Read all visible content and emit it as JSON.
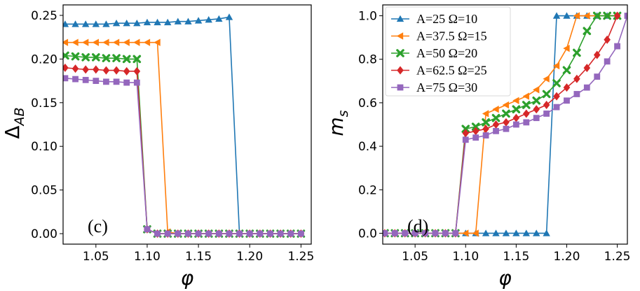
{
  "chart_data": [
    {
      "type": "line",
      "panel_label": "(c)",
      "xlabel": "φ",
      "ylabel_main": "Δ",
      "ylabel_sub": "AB",
      "xlim": [
        1.018,
        1.26
      ],
      "ylim": [
        -0.012,
        0.262
      ],
      "xticks": [
        1.05,
        1.1,
        1.15,
        1.2,
        1.25
      ],
      "xtick_labels": [
        "1.05",
        "1.10",
        "1.15",
        "1.20",
        "1.25"
      ],
      "yticks": [
        0.0,
        0.05,
        0.1,
        0.15,
        0.2,
        0.25
      ],
      "ytick_labels": [
        "0.00",
        "0.05",
        "0.10",
        "0.15",
        "0.20",
        "0.25"
      ],
      "series": [
        {
          "name": "A=25 Ω=10",
          "color": "#1f77b4",
          "marker": "triangle-up",
          "x": [
            1.02,
            1.03,
            1.04,
            1.05,
            1.06,
            1.07,
            1.08,
            1.09,
            1.1,
            1.11,
            1.12,
            1.13,
            1.14,
            1.15,
            1.16,
            1.17,
            1.18,
            1.19,
            1.2,
            1.21,
            1.22,
            1.23,
            1.24,
            1.25
          ],
          "y": [
            0.24,
            0.24,
            0.24,
            0.24,
            0.24,
            0.241,
            0.241,
            0.241,
            0.242,
            0.242,
            0.242,
            0.243,
            0.243,
            0.244,
            0.245,
            0.246,
            0.248,
            0.0,
            0.0,
            0.0,
            0.0,
            0.0,
            0.0,
            0.0
          ]
        },
        {
          "name": "A=37.5 Ω=15",
          "color": "#ff7f0e",
          "marker": "triangle-left",
          "x": [
            1.02,
            1.03,
            1.04,
            1.05,
            1.06,
            1.07,
            1.08,
            1.09,
            1.1,
            1.11,
            1.12,
            1.13,
            1.14,
            1.15,
            1.16,
            1.17,
            1.18,
            1.19,
            1.2,
            1.21,
            1.22,
            1.23,
            1.24,
            1.25
          ],
          "y": [
            0.219,
            0.219,
            0.219,
            0.219,
            0.219,
            0.219,
            0.219,
            0.219,
            0.219,
            0.219,
            0.002,
            0.0,
            0.0,
            0.0,
            0.0,
            0.0,
            0.0,
            0.0,
            0.0,
            0.0,
            0.0,
            0.0,
            0.0,
            0.0
          ]
        },
        {
          "name": "A=50 Ω=20",
          "color": "#2ca02c",
          "marker": "x",
          "x": [
            1.02,
            1.03,
            1.04,
            1.05,
            1.06,
            1.07,
            1.08,
            1.09,
            1.1,
            1.11,
            1.12,
            1.13,
            1.14,
            1.15,
            1.16,
            1.17,
            1.18,
            1.19,
            1.2,
            1.21,
            1.22,
            1.23,
            1.24,
            1.25
          ],
          "y": [
            0.204,
            0.203,
            0.202,
            0.202,
            0.201,
            0.201,
            0.2,
            0.2,
            0.005,
            0.0,
            0.0,
            0.0,
            0.0,
            0.0,
            0.0,
            0.0,
            0.0,
            0.0,
            0.0,
            0.0,
            0.0,
            0.0,
            0.0,
            0.0
          ]
        },
        {
          "name": "A=62.5 Ω=25",
          "color": "#d62728",
          "marker": "diamond",
          "x": [
            1.02,
            1.03,
            1.04,
            1.05,
            1.06,
            1.07,
            1.08,
            1.09,
            1.1,
            1.11,
            1.12,
            1.13,
            1.14,
            1.15,
            1.16,
            1.17,
            1.18,
            1.19,
            1.2,
            1.21,
            1.22,
            1.23,
            1.24,
            1.25
          ],
          "y": [
            0.19,
            0.189,
            0.188,
            0.188,
            0.187,
            0.187,
            0.186,
            0.186,
            0.005,
            0.0,
            0.0,
            0.0,
            0.0,
            0.0,
            0.0,
            0.0,
            0.0,
            0.0,
            0.0,
            0.0,
            0.0,
            0.0,
            0.0,
            0.0
          ]
        },
        {
          "name": "A=75 Ω=30",
          "color": "#9467bd",
          "marker": "square",
          "x": [
            1.02,
            1.03,
            1.04,
            1.05,
            1.06,
            1.07,
            1.08,
            1.09,
            1.1,
            1.11,
            1.12,
            1.13,
            1.14,
            1.15,
            1.16,
            1.17,
            1.18,
            1.19,
            1.2,
            1.21,
            1.22,
            1.23,
            1.24,
            1.25
          ],
          "y": [
            0.178,
            0.177,
            0.176,
            0.175,
            0.174,
            0.174,
            0.173,
            0.173,
            0.005,
            0.0,
            0.0,
            0.0,
            0.0,
            0.0,
            0.0,
            0.0,
            0.0,
            0.0,
            0.0,
            0.0,
            0.0,
            0.0,
            0.0,
            0.0
          ]
        }
      ]
    },
    {
      "type": "line",
      "panel_label": "(d)",
      "xlabel": "φ",
      "ylabel_main": "m",
      "ylabel_sub": "s",
      "xlim": [
        1.018,
        1.26
      ],
      "ylim": [
        -0.05,
        1.05
      ],
      "xticks": [
        1.05,
        1.1,
        1.15,
        1.2,
        1.25
      ],
      "xtick_labels": [
        "1.05",
        "1.10",
        "1.15",
        "1.20",
        "1.25"
      ],
      "yticks": [
        0.0,
        0.2,
        0.4,
        0.6,
        0.8,
        1.0
      ],
      "ytick_labels": [
        "0.0",
        "0.2",
        "0.4",
        "0.6",
        "0.8",
        "1.0"
      ],
      "legend": {
        "position": "top-right",
        "entries": [
          "A=25 Ω=10",
          "A=37.5 Ω=15",
          "A=50 Ω=20",
          "A=62.5 Ω=25",
          "A=75 Ω=30"
        ]
      },
      "series": [
        {
          "name": "A=25 Ω=10",
          "color": "#1f77b4",
          "marker": "triangle-up",
          "x": [
            1.02,
            1.03,
            1.04,
            1.05,
            1.06,
            1.07,
            1.08,
            1.09,
            1.1,
            1.11,
            1.12,
            1.13,
            1.14,
            1.15,
            1.16,
            1.17,
            1.18,
            1.19,
            1.2,
            1.21,
            1.22,
            1.23,
            1.24,
            1.25
          ],
          "y": [
            0.0,
            0.0,
            0.0,
            0.0,
            0.0,
            0.0,
            0.0,
            0.0,
            0.0,
            0.0,
            0.0,
            0.0,
            0.0,
            0.0,
            0.0,
            0.0,
            0.0,
            1.0,
            1.0,
            1.0,
            1.0,
            1.0,
            1.0,
            1.0
          ]
        },
        {
          "name": "A=37.5 Ω=15",
          "color": "#ff7f0e",
          "marker": "triangle-left",
          "x": [
            1.02,
            1.03,
            1.04,
            1.05,
            1.06,
            1.07,
            1.08,
            1.09,
            1.1,
            1.11,
            1.12,
            1.13,
            1.14,
            1.15,
            1.16,
            1.17,
            1.18,
            1.19,
            1.2,
            1.21,
            1.22,
            1.23,
            1.24,
            1.25
          ],
          "y": [
            0.0,
            0.0,
            0.0,
            0.0,
            0.0,
            0.0,
            0.0,
            0.0,
            0.0,
            0.0,
            0.55,
            0.57,
            0.59,
            0.61,
            0.63,
            0.66,
            0.71,
            0.77,
            0.85,
            1.0,
            1.0,
            1.0,
            1.0,
            1.0
          ]
        },
        {
          "name": "A=50 Ω=20",
          "color": "#2ca02c",
          "marker": "x",
          "x": [
            1.02,
            1.03,
            1.04,
            1.05,
            1.06,
            1.07,
            1.08,
            1.09,
            1.1,
            1.11,
            1.12,
            1.13,
            1.14,
            1.15,
            1.16,
            1.17,
            1.18,
            1.19,
            1.2,
            1.21,
            1.22,
            1.23,
            1.24,
            1.25
          ],
          "y": [
            0.0,
            0.0,
            0.0,
            0.0,
            0.0,
            0.0,
            0.0,
            0.0,
            0.48,
            0.49,
            0.51,
            0.53,
            0.55,
            0.57,
            0.59,
            0.61,
            0.64,
            0.69,
            0.75,
            0.83,
            0.93,
            1.0,
            1.0,
            1.0
          ]
        },
        {
          "name": "A=62.5 Ω=25",
          "color": "#d62728",
          "marker": "diamond",
          "x": [
            1.02,
            1.03,
            1.04,
            1.05,
            1.06,
            1.07,
            1.08,
            1.09,
            1.1,
            1.11,
            1.12,
            1.13,
            1.14,
            1.15,
            1.16,
            1.17,
            1.18,
            1.19,
            1.2,
            1.21,
            1.22,
            1.23,
            1.24,
            1.25
          ],
          "y": [
            0.0,
            0.0,
            0.0,
            0.0,
            0.0,
            0.0,
            0.0,
            0.0,
            0.46,
            0.47,
            0.48,
            0.5,
            0.51,
            0.53,
            0.55,
            0.57,
            0.59,
            0.63,
            0.67,
            0.71,
            0.76,
            0.82,
            0.89,
            1.0
          ]
        },
        {
          "name": "A=75 Ω=30",
          "color": "#9467bd",
          "marker": "square",
          "x": [
            1.02,
            1.03,
            1.04,
            1.05,
            1.06,
            1.07,
            1.08,
            1.09,
            1.1,
            1.11,
            1.12,
            1.13,
            1.14,
            1.15,
            1.16,
            1.17,
            1.18,
            1.19,
            1.2,
            1.21,
            1.22,
            1.23,
            1.24,
            1.25,
            1.26
          ],
          "y": [
            0.0,
            0.0,
            0.0,
            0.0,
            0.0,
            0.0,
            0.0,
            0.0,
            0.43,
            0.44,
            0.45,
            0.47,
            0.48,
            0.5,
            0.51,
            0.53,
            0.55,
            0.58,
            0.61,
            0.64,
            0.67,
            0.72,
            0.79,
            0.86,
            1.0
          ]
        }
      ]
    }
  ]
}
